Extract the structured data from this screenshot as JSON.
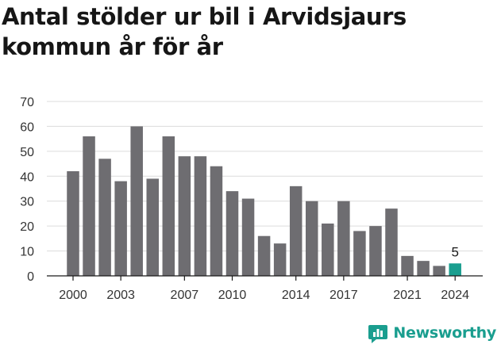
{
  "title": "Antal stölder ur bil i Arvidsjaurs kommun år för år",
  "brand": {
    "name": "Newsworthy",
    "icon": "newsworthy-chart-icon",
    "color": "#1a9e8f"
  },
  "chart_data": {
    "type": "bar",
    "title": "Antal stölder ur bil i Arvidsjaurs kommun år för år",
    "xlabel": "",
    "ylabel": "",
    "ylim": [
      0,
      70
    ],
    "yticks": [
      0,
      10,
      20,
      30,
      40,
      50,
      60,
      70
    ],
    "xtick_labels": [
      "2000",
      "2003",
      "2007",
      "2010",
      "2014",
      "2017",
      "2021",
      "2024"
    ],
    "categories": [
      "2000",
      "2001",
      "2002",
      "2003",
      "2004",
      "2005",
      "2006",
      "2007",
      "2008",
      "2009",
      "2010",
      "2011",
      "2012",
      "2013",
      "2014",
      "2015",
      "2016",
      "2017",
      "2018",
      "2019",
      "2020",
      "2021",
      "2022",
      "2023",
      "2024"
    ],
    "values": [
      42,
      56,
      47,
      38,
      60,
      39,
      56,
      48,
      48,
      44,
      34,
      31,
      16,
      13,
      36,
      30,
      21,
      30,
      18,
      20,
      27,
      8,
      6,
      4,
      5
    ],
    "highlight": {
      "category": "2024",
      "label": "5"
    },
    "colors": {
      "bar": "#6e6d71",
      "highlight": "#1a9e8f",
      "grid": "#dcdcdc"
    },
    "grid": true,
    "legend": "none"
  }
}
